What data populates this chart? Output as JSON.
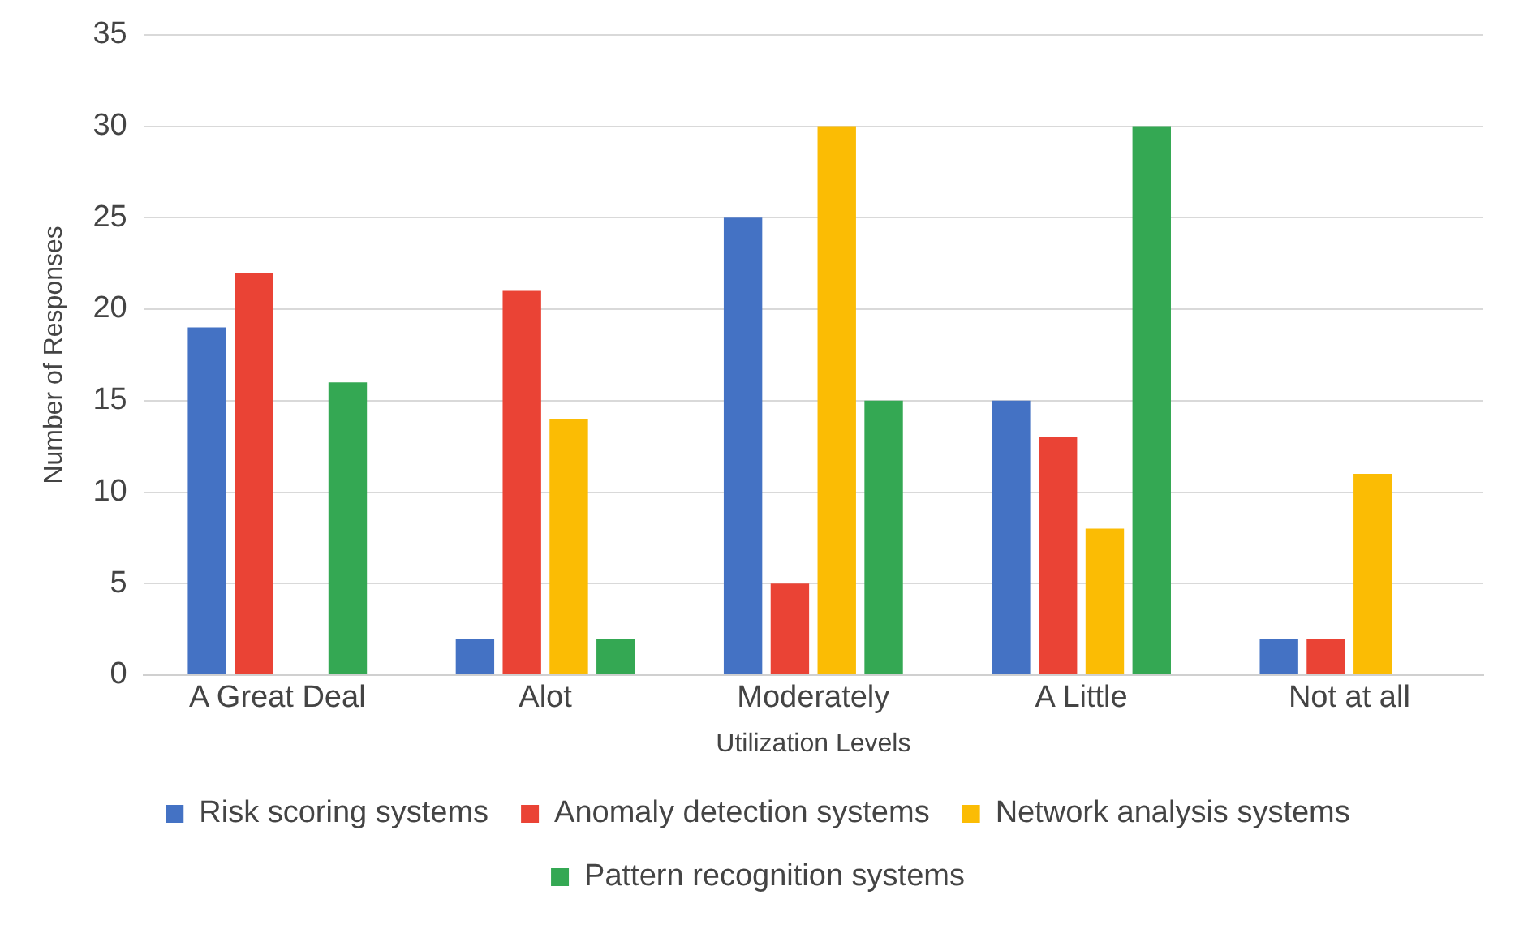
{
  "chart_data": {
    "type": "bar",
    "xlabel": "Utilization Levels",
    "ylabel": "Number of Responses",
    "categories": [
      "A Great Deal",
      "Alot",
      "Moderately",
      "A Little",
      "Not at all"
    ],
    "series": [
      {
        "name": "Risk scoring systems",
        "color": "#4472c4",
        "values": [
          19,
          2,
          25,
          15,
          2
        ]
      },
      {
        "name": "Anomaly detection systems",
        "color": "#ea4335",
        "values": [
          22,
          21,
          5,
          13,
          2
        ]
      },
      {
        "name": "Network analysis systems",
        "color": "#fbbc04",
        "values": [
          0,
          14,
          30,
          8,
          11
        ]
      },
      {
        "name": "Pattern recognition systems",
        "color": "#34a853",
        "values": [
          16,
          2,
          15,
          30,
          0
        ]
      }
    ],
    "ylim": [
      0,
      35
    ],
    "yticks": [
      0,
      5,
      10,
      15,
      20,
      25,
      30,
      35
    ],
    "grid": "y",
    "legend": "bottom"
  }
}
